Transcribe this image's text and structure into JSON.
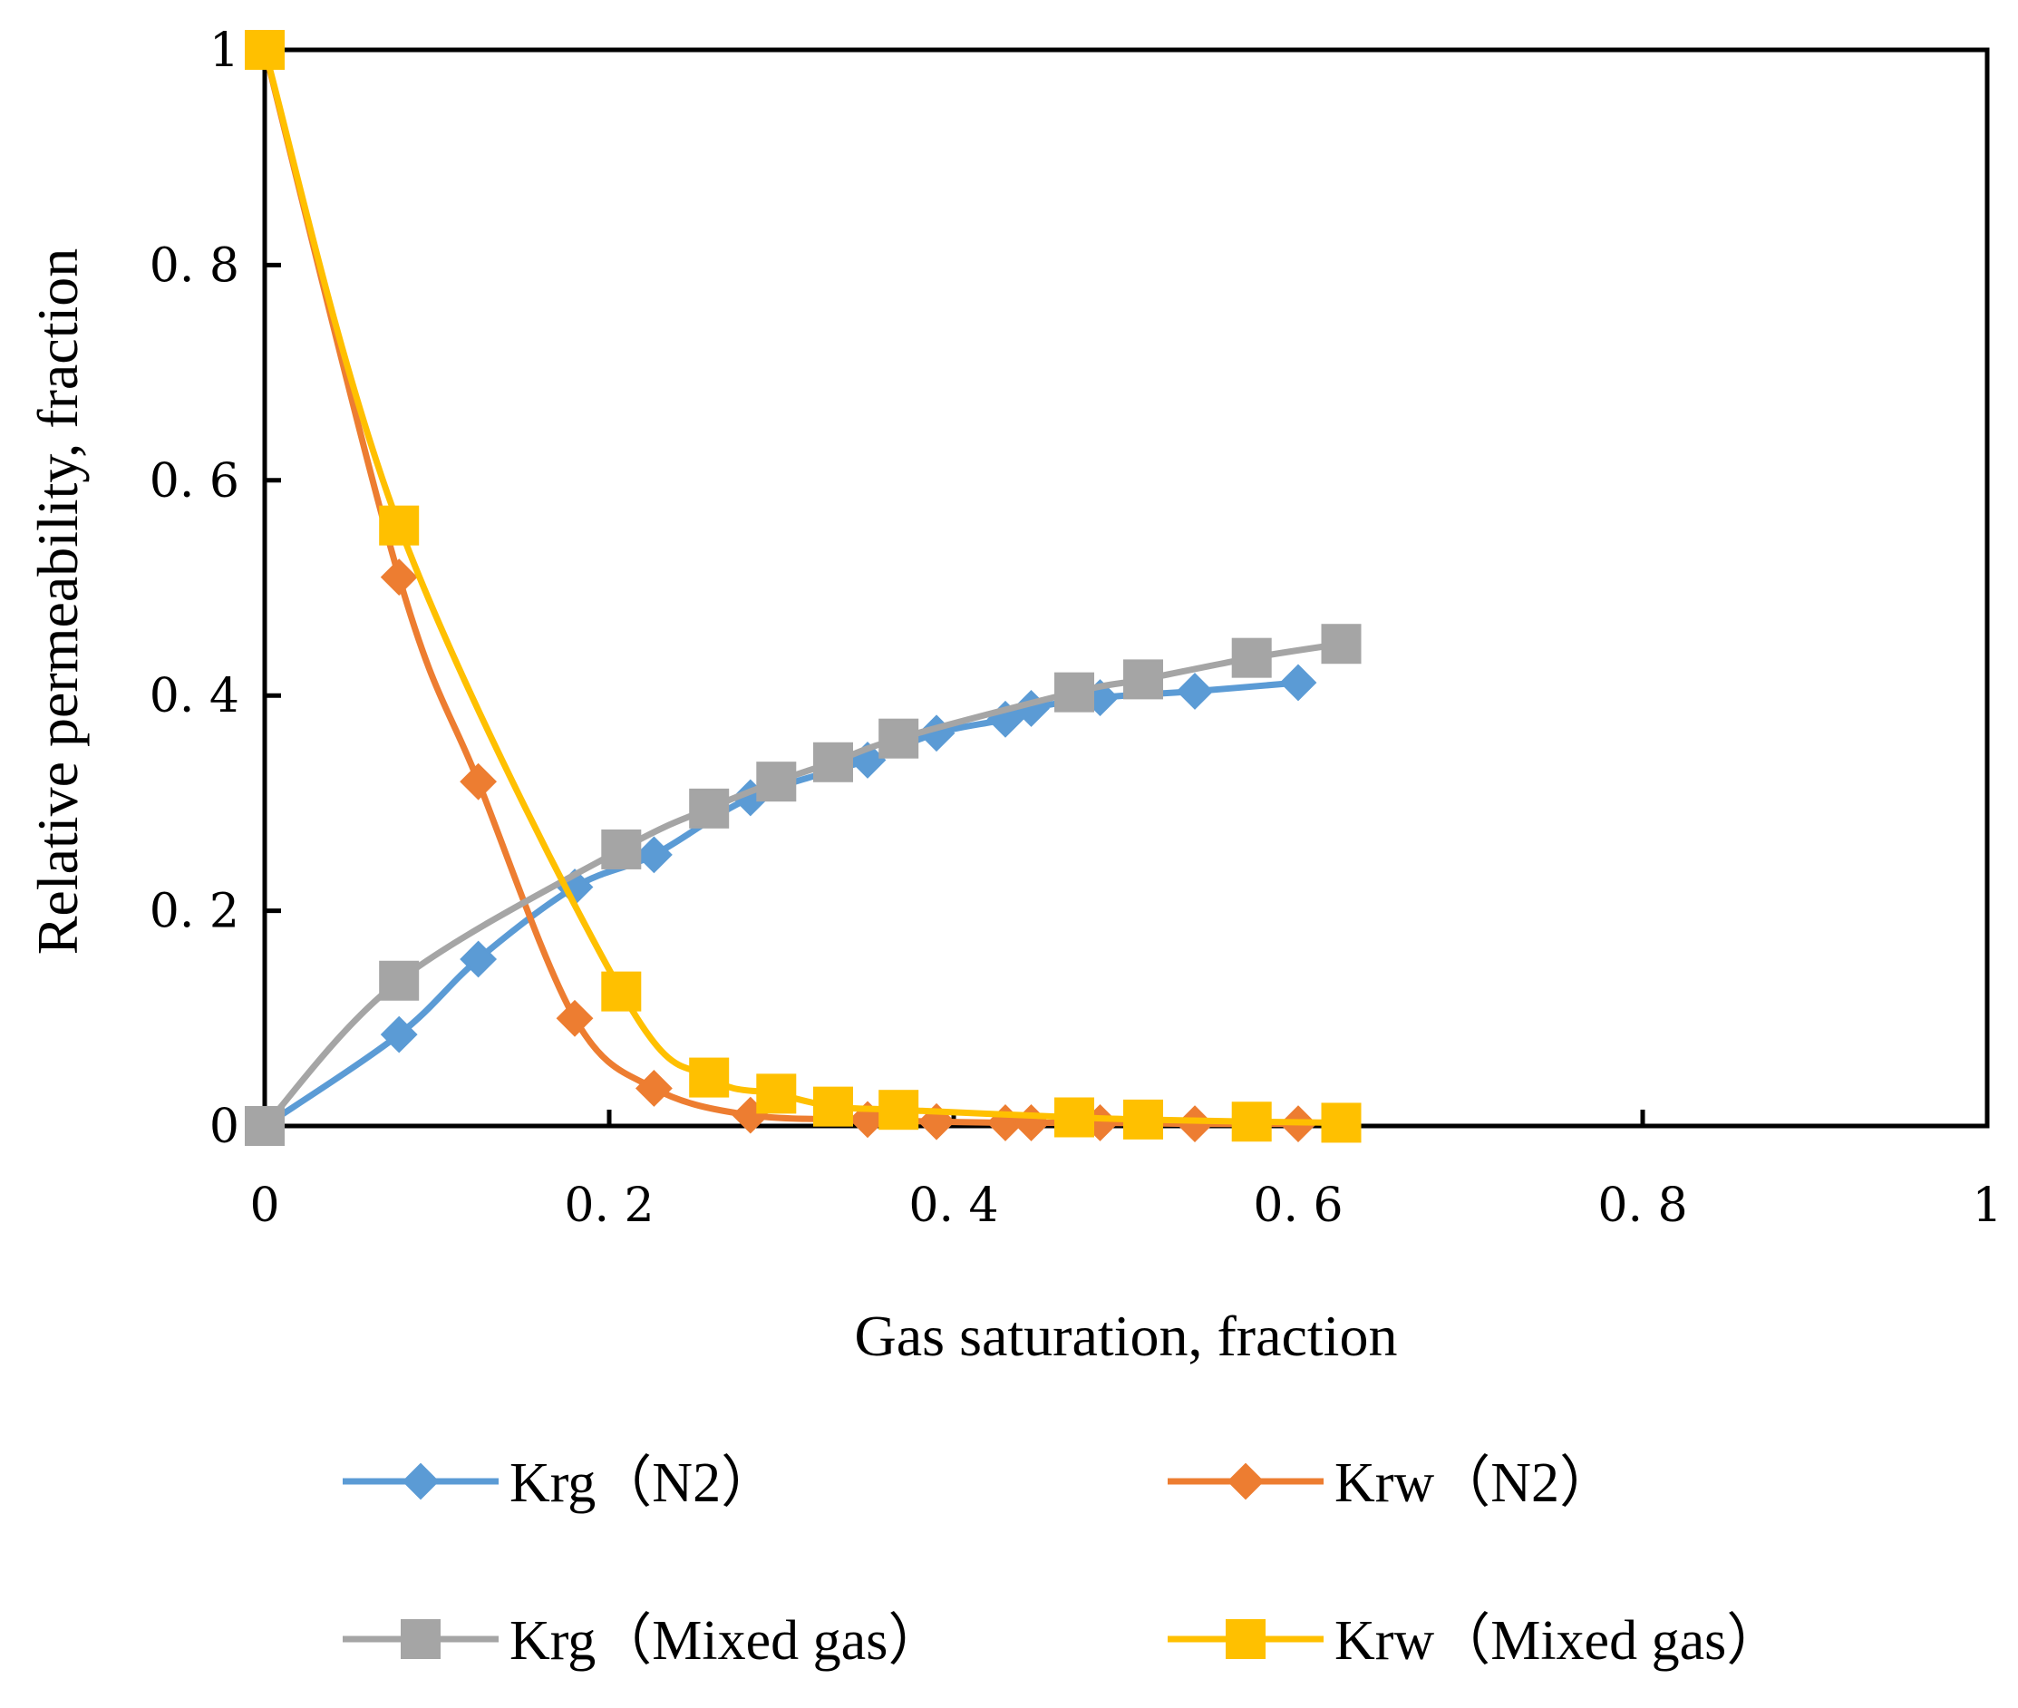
{
  "chart_data": {
    "type": "line",
    "xlabel": "Gas saturation, fraction",
    "ylabel": "Relative  permeability, fraction",
    "xlim": [
      0,
      1
    ],
    "ylim": [
      0,
      1
    ],
    "x_ticks": [
      0,
      0.2,
      0.4,
      0.6,
      0.8,
      1
    ],
    "y_ticks": [
      0,
      0.2,
      0.4,
      0.6,
      0.8,
      1
    ],
    "x_tick_labels": [
      "0",
      "0. 2",
      "0. 4",
      "0. 6",
      "0. 8",
      "1"
    ],
    "y_tick_labels": [
      "0",
      "0. 2",
      "0. 4",
      "0. 6",
      "0. 8",
      "1"
    ],
    "grid": false,
    "legend_position": "bottom",
    "series": [
      {
        "name": "Krg（N2）",
        "color": "#5b9bd5",
        "marker": "diamond",
        "x": [
          0,
          0.078,
          0.124,
          0.18,
          0.226,
          0.282,
          0.35,
          0.39,
          0.43,
          0.445,
          0.485,
          0.54,
          0.6
        ],
        "y": [
          0,
          0.085,
          0.155,
          0.222,
          0.252,
          0.305,
          0.34,
          0.365,
          0.378,
          0.388,
          0.398,
          0.404,
          0.412
        ]
      },
      {
        "name": "Krw（N2）",
        "color": "#ed7d31",
        "marker": "diamond",
        "x": [
          0,
          0.078,
          0.124,
          0.18,
          0.226,
          0.282,
          0.35,
          0.39,
          0.43,
          0.445,
          0.485,
          0.54,
          0.6
        ],
        "y": [
          1,
          0.51,
          0.32,
          0.1,
          0.035,
          0.01,
          0.006,
          0.004,
          0.003,
          0.003,
          0.003,
          0.002,
          0.002
        ]
      },
      {
        "name": "Krg（Mixed gas）",
        "color": "#a5a5a5",
        "marker": "square",
        "x": [
          0,
          0.078,
          0.207,
          0.258,
          0.297,
          0.33,
          0.368,
          0.47,
          0.51,
          0.573,
          0.625
        ],
        "y": [
          0,
          0.135,
          0.257,
          0.295,
          0.32,
          0.338,
          0.36,
          0.403,
          0.415,
          0.435,
          0.448
        ]
      },
      {
        "name": "Krw（Mixed gas）",
        "color": "#ffc000",
        "marker": "square",
        "x": [
          0,
          0.078,
          0.207,
          0.258,
          0.297,
          0.33,
          0.368,
          0.47,
          0.51,
          0.573,
          0.625
        ],
        "y": [
          1,
          0.558,
          0.125,
          0.045,
          0.03,
          0.018,
          0.015,
          0.008,
          0.006,
          0.004,
          0.003
        ]
      }
    ]
  }
}
